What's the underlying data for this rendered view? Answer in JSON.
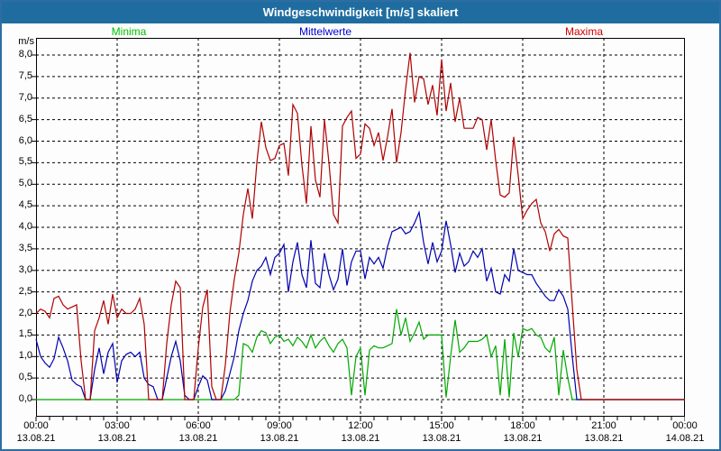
{
  "window": {
    "title": "Windgeschwindigkeit [m/s] skaliert"
  },
  "legend": [
    {
      "label": "Minima",
      "color": "#00c000"
    },
    {
      "label": "Mittelwerte",
      "color": "#0000d0"
    },
    {
      "label": "Maxima",
      "color": "#d00000"
    }
  ],
  "chart_data": {
    "type": "line",
    "title": "Windgeschwindigkeit [m/s] skaliert",
    "xlabel": "",
    "ylabel": "m/s",
    "ylim": [
      0,
      8
    ],
    "ytick_step": 0.5,
    "ytick_labels": [
      "0,0",
      "0,5",
      "1,0",
      "1,5",
      "2,0",
      "2,5",
      "3,0",
      "3,5",
      "4,0",
      "4,5",
      "5,0",
      "5,5",
      "6,0",
      "6,5",
      "7,0",
      "7,5",
      "8,0"
    ],
    "grid": "dashed",
    "legend_position": "top",
    "x_unit": "minutes_since_midnight",
    "x_range_minutes": [
      0,
      1440
    ],
    "sample_interval_minutes": 10,
    "xtick_hours": [
      0,
      3,
      6,
      9,
      12,
      15,
      18,
      21,
      24
    ],
    "xtick_labels": [
      "00:00",
      "03:00",
      "06:00",
      "09:00",
      "12:00",
      "15:00",
      "18:00",
      "21:00",
      "00:00"
    ],
    "xtick_dates": [
      "13.08.21",
      "13.08.21",
      "13.08.21",
      "13.08.21",
      "13.08.21",
      "13.08.21",
      "13.08.21",
      "13.08.21",
      "14.08.21"
    ],
    "series": [
      {
        "name": "Minima",
        "color": "#00a800",
        "values": [
          0,
          0,
          0,
          0,
          0,
          0,
          0,
          0,
          0,
          0,
          0,
          0,
          0,
          0,
          0,
          0,
          0,
          0,
          0,
          0,
          0,
          0,
          0,
          0,
          0,
          0,
          0,
          0,
          0,
          0,
          0,
          0,
          0,
          0,
          0,
          0,
          0,
          0,
          0,
          0,
          0,
          0,
          0,
          0,
          0,
          0.1,
          1.3,
          1.25,
          1.1,
          1.45,
          1.6,
          1.55,
          1.3,
          1.45,
          1.5,
          1.35,
          1.4,
          1.25,
          1.45,
          1.35,
          1.2,
          1.5,
          1.2,
          1.35,
          1.45,
          1.25,
          1.1,
          1.3,
          1.4,
          1.2,
          0.1,
          1.0,
          1.2,
          0.1,
          1.15,
          1.25,
          1.2,
          1.2,
          1.25,
          1.3,
          2.1,
          1.5,
          1.9,
          1.35,
          1.55,
          1.8,
          1.4,
          1.5,
          1.5,
          1.5,
          1.5,
          0.05,
          1.0,
          1.85,
          1.1,
          1.2,
          1.35,
          1.35,
          1.35,
          1.4,
          1.5,
          1.0,
          1.25,
          0.1,
          1.4,
          0.05,
          1.55,
          1.0,
          1.65,
          1.6,
          1.65,
          1.5,
          1.45,
          1.2,
          1.1,
          1.45,
          0.1,
          1.15,
          0.5,
          0,
          0,
          0,
          0,
          0,
          0,
          0,
          0,
          0,
          0,
          0,
          0,
          0,
          0,
          0,
          0,
          0,
          0,
          0,
          0,
          0,
          0,
          0,
          0,
          0,
          0
        ]
      },
      {
        "name": "Mittelwerte",
        "color": "#0000b0",
        "values": [
          1.4,
          1.0,
          0.85,
          0.75,
          0.95,
          1.45,
          1.2,
          0.9,
          0.45,
          0.35,
          0.3,
          0,
          0,
          0.7,
          1.2,
          0.6,
          1.1,
          1.3,
          0.4,
          0.9,
          1.05,
          1.1,
          1.0,
          1.1,
          0.5,
          0.35,
          0.3,
          0,
          0,
          0.5,
          1.0,
          1.35,
          0.9,
          0.1,
          0,
          0,
          0.3,
          0.55,
          0.45,
          0,
          0,
          0,
          0.2,
          0.6,
          1.0,
          1.6,
          2.0,
          2.3,
          2.75,
          3.0,
          3.1,
          3.3,
          2.9,
          3.3,
          3.4,
          3.6,
          2.5,
          3.2,
          3.65,
          2.9,
          2.6,
          3.7,
          2.7,
          2.6,
          3.4,
          2.9,
          2.55,
          2.8,
          3.5,
          2.65,
          3.2,
          3.45,
          3.45,
          2.8,
          3.3,
          3.15,
          3.3,
          3.05,
          3.55,
          3.9,
          3.95,
          4.0,
          3.85,
          3.9,
          4.1,
          4.35,
          3.65,
          3.15,
          3.65,
          3.2,
          3.45,
          4.15,
          3.6,
          2.95,
          3.4,
          3.1,
          3.2,
          3.45,
          3.3,
          3.5,
          2.75,
          3.05,
          2.5,
          2.45,
          2.9,
          2.75,
          3.5,
          3.0,
          2.95,
          2.9,
          2.9,
          2.7,
          2.55,
          2.4,
          2.3,
          2.3,
          2.55,
          2.4,
          2.1,
          1.0,
          0,
          0,
          0,
          0,
          0,
          0,
          0,
          0,
          0,
          0,
          0,
          0,
          0,
          0,
          0,
          0,
          0,
          0,
          0,
          0,
          0,
          0,
          0,
          0,
          0
        ]
      },
      {
        "name": "Maxima",
        "color": "#b00000",
        "values": [
          2.0,
          2.1,
          2.05,
          1.9,
          2.35,
          2.4,
          2.2,
          2.1,
          2.15,
          2.2,
          0.9,
          0,
          0,
          1.6,
          1.9,
          2.3,
          1.75,
          2.45,
          1.9,
          2.1,
          2.0,
          2.0,
          2.1,
          2.35,
          1.75,
          0,
          0,
          0,
          0,
          1.3,
          2.2,
          2.75,
          2.6,
          0,
          0,
          0,
          1.2,
          2.15,
          2.55,
          0.3,
          0,
          0,
          0.8,
          2.0,
          2.8,
          3.4,
          4.3,
          4.9,
          4.2,
          5.5,
          6.45,
          5.85,
          5.55,
          5.6,
          5.9,
          5.95,
          5.2,
          6.85,
          6.65,
          5.45,
          4.55,
          6.35,
          5.1,
          4.7,
          6.5,
          5.5,
          4.3,
          4.1,
          6.35,
          6.55,
          6.7,
          5.6,
          5.7,
          6.4,
          6.3,
          5.9,
          6.2,
          5.55,
          6.1,
          6.75,
          5.5,
          6.2,
          7.2,
          8.05,
          6.9,
          7.5,
          7.45,
          6.85,
          7.3,
          6.6,
          7.9,
          6.7,
          7.35,
          6.45,
          7.0,
          6.3,
          6.3,
          6.3,
          6.55,
          6.5,
          5.8,
          6.5,
          5.55,
          4.75,
          4.7,
          4.8,
          6.1,
          5.2,
          4.2,
          4.4,
          4.55,
          4.65,
          4.1,
          3.9,
          3.45,
          3.85,
          3.95,
          3.8,
          3.75,
          2.2,
          0.7,
          0,
          0,
          0,
          0,
          0,
          0,
          0,
          0,
          0,
          0,
          0,
          0,
          0,
          0,
          0,
          0,
          0,
          0,
          0,
          0,
          0,
          0,
          0,
          0
        ]
      }
    ]
  }
}
